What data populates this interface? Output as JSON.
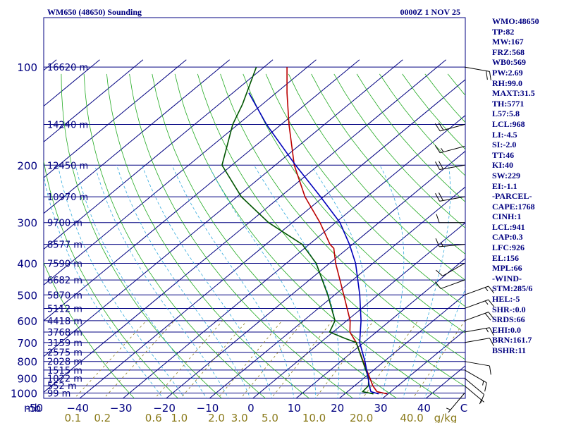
{
  "header": {
    "station": "WM650 (48650) Sounding",
    "time": "0000Z  1 NOV 25"
  },
  "indices": [
    "WMO:48650",
    "TP:82",
    "MW:167",
    "FRZ:568",
    "WB0:569",
    "PW:2.69",
    "RH:99.0",
    "MAXT:31.5",
    "TH:5771",
    "L57:5.8",
    "LCL:968",
    "LI:-4.5",
    "SI:-2.0",
    "TT:46",
    "KI:40",
    "SW:229",
    "EI:-1.1",
    "-PARCEL-",
    "CAPE:1768",
    "CINH:1",
    "LCL:941",
    "CAP:0.3",
    "LFC:926",
    "EL:156",
    "MPL:66",
    "-WIND-",
    "STM:285/6",
    "HEL:-5",
    "SHR-:0.0",
    "SRDS:66",
    "EHI:0.0",
    "BRN:161.7",
    "BSHR:11"
  ],
  "colors": {
    "frame": "#000080",
    "isotherm": "#000080",
    "dry_adiabat": "#22aa22",
    "moist_adiabat": "#33aadd",
    "mixing_ratio": "#8a7a1a",
    "temperature": "#bb0000",
    "dewpoint": "#005500",
    "parcel": "#0000bb",
    "wind": "#000000"
  },
  "chart_data": {
    "type": "skew-t",
    "title": "WM650 (48650) Sounding",
    "pressure_unit": "mb",
    "temperature_unit": "C",
    "mixing_ratio_unit": "g/kg",
    "pressure_levels": [
      100,
      200,
      300,
      400,
      500,
      600,
      700,
      800,
      900,
      1000
    ],
    "pressure_labels": [
      "100",
      "200",
      "300",
      "400",
      "500",
      "600",
      "700",
      "800",
      "900",
      "1000"
    ],
    "pressure_axis_label": "mb",
    "temperature_ticks": [
      -50,
      -40,
      -30,
      -20,
      -10,
      0,
      10,
      20,
      30,
      40
    ],
    "temperature_labels": [
      "-50",
      "−40",
      "−30",
      "−20",
      "−10",
      "0",
      "10",
      "20",
      "30",
      "40"
    ],
    "temperature_unit_label": "C",
    "ylim": [
      100,
      1050
    ],
    "heights": [
      {
        "p": 100,
        "label": "16620 m"
      },
      {
        "p": 150,
        "label": "14240 m"
      },
      {
        "p": 200,
        "label": "12450 m"
      },
      {
        "p": 250,
        "label": "10970 m"
      },
      {
        "p": 300,
        "label": "9700 m"
      },
      {
        "p": 350,
        "label": "8577 m"
      },
      {
        "p": 400,
        "label": "7590 m"
      },
      {
        "p": 450,
        "label": "6682 m"
      },
      {
        "p": 500,
        "label": "5870 m"
      },
      {
        "p": 550,
        "label": "5112 m"
      },
      {
        "p": 600,
        "label": "4418 m"
      },
      {
        "p": 650,
        "label": "3768 m"
      },
      {
        "p": 700,
        "label": "3159 m"
      },
      {
        "p": 750,
        "label": "2575 m"
      },
      {
        "p": 800,
        "label": "2028 m"
      },
      {
        "p": 850,
        "label": "1515 m"
      },
      {
        "p": 900,
        "label": "1022 m"
      },
      {
        "p": 950,
        "label": "552 m"
      },
      {
        "p": 1000,
        "label": "99 m"
      }
    ],
    "mixing_ratios": [
      {
        "w": 0.1,
        "label": "0.1"
      },
      {
        "w": 0.2,
        "label": "0.2"
      },
      {
        "w": 0.6,
        "label": "0.6"
      },
      {
        "w": 1.0,
        "label": "1.0"
      },
      {
        "w": 2.0,
        "label": "2.0"
      },
      {
        "w": 3.0,
        "label": "3.0"
      },
      {
        "w": 5.0,
        "label": "5.0"
      },
      {
        "w": 10.0,
        "label": "10.0"
      },
      {
        "w": 20.0,
        "label": "20.0"
      },
      {
        "w": 40.0,
        "label": "40.0"
      }
    ],
    "mixing_ratio_axis_label": "g/kg",
    "series": [
      {
        "name": "Temperature",
        "points": [
          [
            100,
            -84.7
          ],
          [
            120,
            -77.5
          ],
          [
            150,
            -68.2
          ],
          [
            200,
            -55.6
          ],
          [
            250,
            -44.3
          ],
          [
            300,
            -33.6
          ],
          [
            350,
            -25.2
          ],
          [
            360,
            -23.2
          ],
          [
            400,
            -18.6
          ],
          [
            500,
            -7.9
          ],
          [
            600,
            0.8
          ],
          [
            650,
            3.9
          ],
          [
            700,
            8.3
          ],
          [
            800,
            15.2
          ],
          [
            900,
            21.4
          ],
          [
            950,
            24.2
          ],
          [
            990,
            26.8
          ],
          [
            1006,
            29.8
          ]
        ]
      },
      {
        "name": "Dewpoint",
        "points": [
          [
            100,
            -91.8
          ],
          [
            130,
            -84.6
          ],
          [
            150,
            -81.2
          ],
          [
            200,
            -72.3
          ],
          [
            250,
            -59.0
          ],
          [
            300,
            -45.5
          ],
          [
            350,
            -31.6
          ],
          [
            400,
            -23.1
          ],
          [
            500,
            -11.6
          ],
          [
            600,
            -2.7
          ],
          [
            650,
            -0.8
          ],
          [
            680,
            4.6
          ],
          [
            700,
            8.3
          ],
          [
            800,
            15.1
          ],
          [
            900,
            21.1
          ],
          [
            950,
            23.2
          ],
          [
            990,
            23.5
          ],
          [
            1006,
            26.6
          ]
        ]
      },
      {
        "name": "Parcel",
        "points": [
          [
            120,
            -86.3
          ],
          [
            150,
            -73.4
          ],
          [
            200,
            -55.3
          ],
          [
            250,
            -40.7
          ],
          [
            300,
            -29.0
          ],
          [
            350,
            -20.7
          ],
          [
            400,
            -14.0
          ],
          [
            500,
            -4.2
          ],
          [
            600,
            3.3
          ],
          [
            700,
            9.1
          ],
          [
            800,
            15.6
          ],
          [
            900,
            21.0
          ],
          [
            950,
            23.4
          ],
          [
            990,
            25.4
          ],
          [
            1006,
            27.8
          ]
        ]
      }
    ],
    "winds": [
      {
        "p": 100,
        "dir": 100,
        "spd": 20
      },
      {
        "p": 150,
        "dir": 255,
        "spd": 20
      },
      {
        "p": 175,
        "dir": 255,
        "spd": 15
      },
      {
        "p": 200,
        "dir": 260,
        "spd": 20
      },
      {
        "p": 250,
        "dir": 260,
        "spd": 20
      },
      {
        "p": 300,
        "dir": 270,
        "spd": 10
      },
      {
        "p": 350,
        "dir": 265,
        "spd": 15
      },
      {
        "p": 400,
        "dir": 240,
        "spd": 10
      },
      {
        "p": 450,
        "dir": 250,
        "spd": 10
      },
      {
        "p": 500,
        "dir": 70,
        "spd": 15
      },
      {
        "p": 550,
        "dir": 70,
        "spd": 15
      },
      {
        "p": 600,
        "dir": 70,
        "spd": 20
      },
      {
        "p": 650,
        "dir": 80,
        "spd": 15
      },
      {
        "p": 700,
        "dir": 80,
        "spd": 10
      },
      {
        "p": 800,
        "dir": 100,
        "spd": 10
      },
      {
        "p": 850,
        "dir": 120,
        "spd": 15
      },
      {
        "p": 900,
        "dir": 130,
        "spd": 10
      },
      {
        "p": 950,
        "dir": 130,
        "spd": 5
      },
      {
        "p": 1000,
        "dir": 220,
        "spd": 5
      }
    ]
  }
}
